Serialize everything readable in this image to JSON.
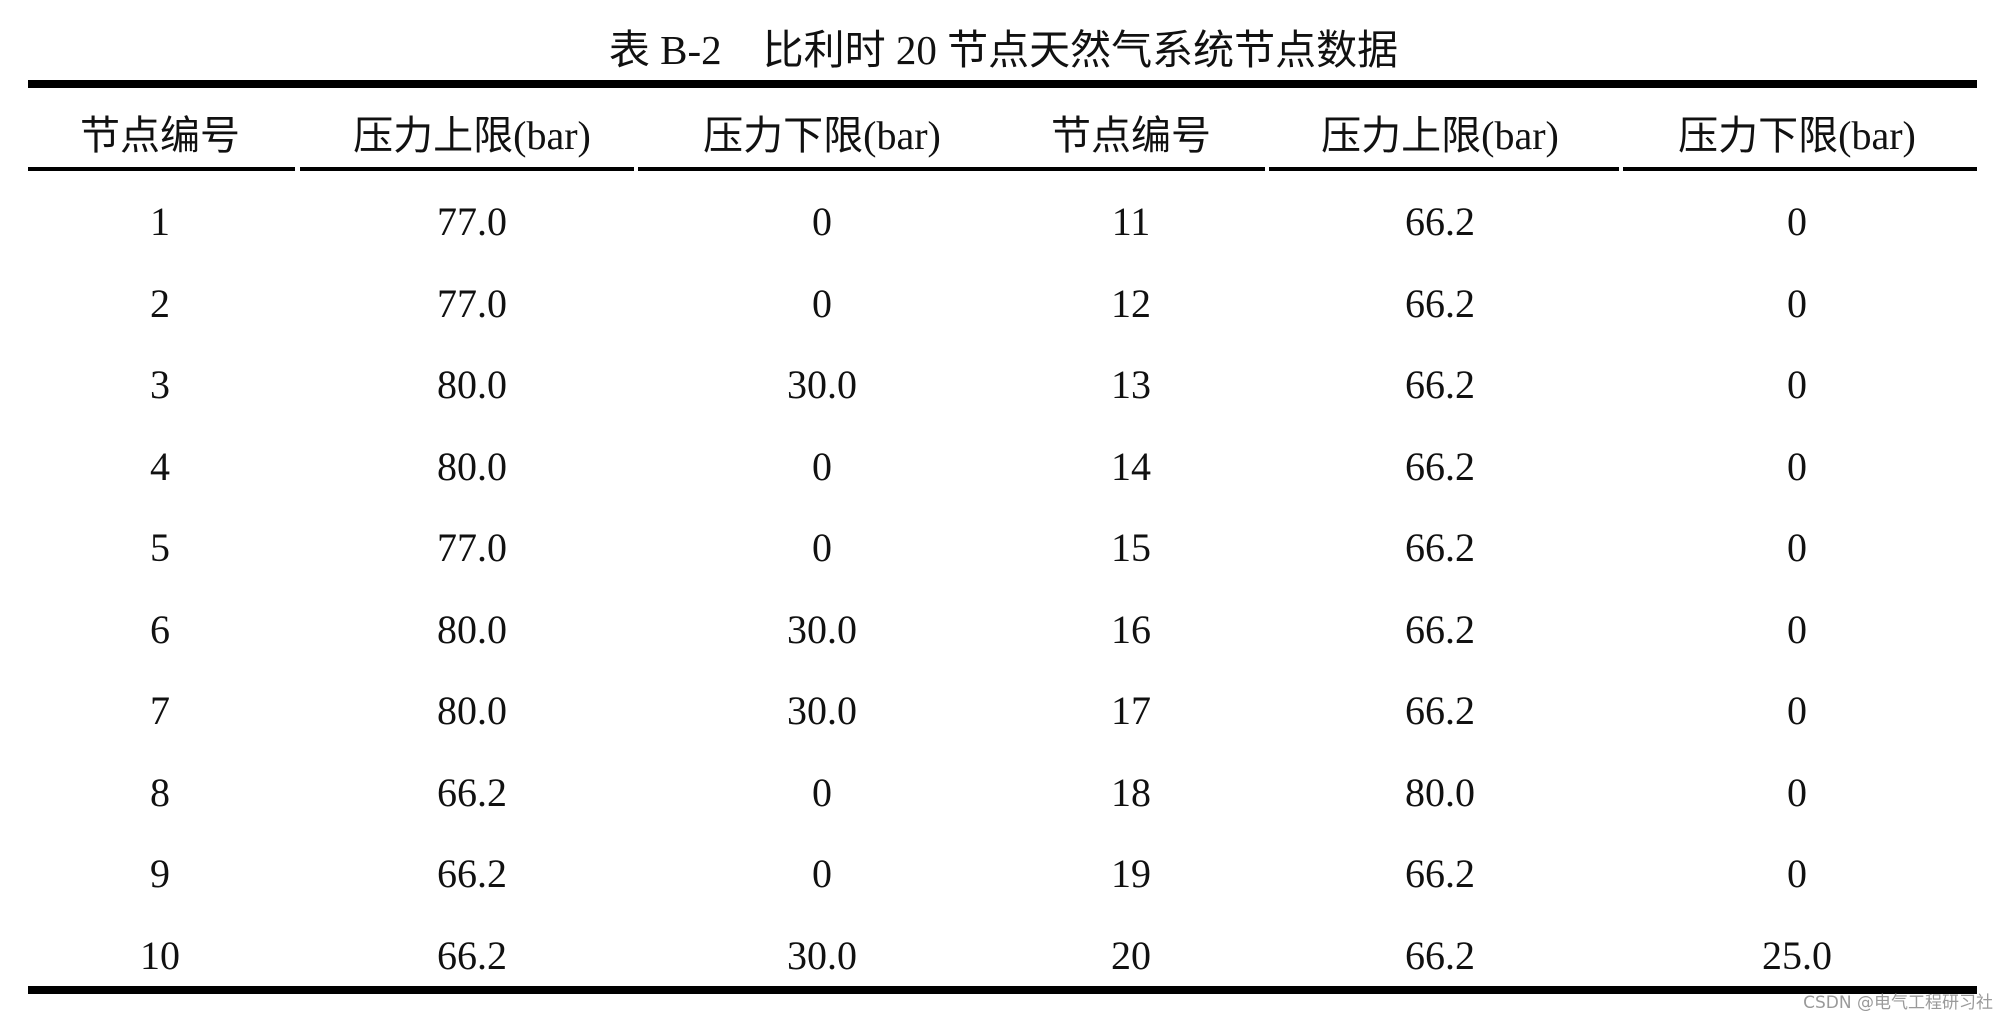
{
  "table": {
    "caption": "表 B-2　比利时 20 节点天然气系统节点数据",
    "headers": [
      "节点编号",
      "压力上限(bar)",
      "压力下限(bar)",
      "节点编号",
      "压力上限(bar)",
      "压力下限(bar)"
    ],
    "rows": [
      [
        "1",
        "77.0",
        "0",
        "11",
        "66.2",
        "0"
      ],
      [
        "2",
        "77.0",
        "0",
        "12",
        "66.2",
        "0"
      ],
      [
        "3",
        "80.0",
        "30.0",
        "13",
        "66.2",
        "0"
      ],
      [
        "4",
        "80.0",
        "0",
        "14",
        "66.2",
        "0"
      ],
      [
        "5",
        "77.0",
        "0",
        "15",
        "66.2",
        "0"
      ],
      [
        "6",
        "80.0",
        "30.0",
        "16",
        "66.2",
        "0"
      ],
      [
        "7",
        "80.0",
        "30.0",
        "17",
        "66.2",
        "0"
      ],
      [
        "8",
        "66.2",
        "0",
        "18",
        "80.0",
        "0"
      ],
      [
        "9",
        "66.2",
        "0",
        "19",
        "66.2",
        "0"
      ],
      [
        "10",
        "66.2",
        "30.0",
        "20",
        "66.2",
        "25.0"
      ]
    ]
  },
  "watermark": "CSDN @电气工程研习社"
}
